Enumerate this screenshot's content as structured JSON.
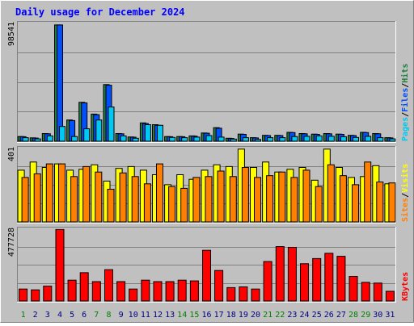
{
  "title": "Daily usage for December 2024",
  "colors": {
    "background": "#c0c0c0",
    "title": "#0000ff",
    "pages": "#00c8f0",
    "files": "#0050ff",
    "hits": "#208040",
    "sites": "#ff8000",
    "visits": "#ffff00",
    "kbytes": "#ff0000",
    "weekday_label": "#000080",
    "weekend_label": "#008000"
  },
  "chart_data": [
    {
      "type": "bar",
      "title": "Daily usage for December 2024",
      "panel": "hits-files-pages",
      "ymax_label": "98541",
      "ylim": [
        0,
        98541
      ],
      "legend": [
        {
          "text": "Pages",
          "color": "#00c8f0"
        },
        {
          "text": "Files",
          "color": "#0050ff"
        },
        {
          "text": "Hits",
          "color": "#208040"
        }
      ],
      "categories": [
        "1",
        "2",
        "3",
        "4",
        "5",
        "6",
        "7",
        "8",
        "9",
        "10",
        "11",
        "12",
        "13",
        "14",
        "15",
        "16",
        "17",
        "18",
        "19",
        "20",
        "21",
        "22",
        "23",
        "24",
        "25",
        "26",
        "27",
        "28",
        "29",
        "30",
        "31"
      ],
      "series": [
        {
          "name": "Hits",
          "values": [
            4000,
            2900,
            6500,
            98541,
            18000,
            33000,
            23000,
            48000,
            6500,
            3600,
            15500,
            14000,
            4000,
            4000,
            4500,
            7000,
            11500,
            2500,
            6000,
            3000,
            5000,
            5000,
            7500,
            6500,
            6000,
            6500,
            6000,
            5000,
            7500,
            6500,
            3000
          ]
        },
        {
          "name": "Files",
          "values": [
            3800,
            2700,
            6300,
            98541,
            17500,
            32500,
            22500,
            47500,
            6300,
            3400,
            15000,
            13500,
            3800,
            3800,
            4300,
            6800,
            11000,
            2300,
            5800,
            2800,
            4800,
            4800,
            7300,
            6300,
            5800,
            6300,
            5800,
            4800,
            7300,
            6300,
            2800
          ]
        },
        {
          "name": "Pages",
          "values": [
            3000,
            2000,
            4500,
            12500,
            4000,
            10500,
            18000,
            29000,
            4500,
            2500,
            14000,
            13500,
            3200,
            3000,
            3500,
            4800,
            3500,
            1800,
            3000,
            1500,
            3000,
            3000,
            4000,
            4200,
            4500,
            4200,
            3800,
            3200,
            4200,
            3000,
            2000
          ]
        }
      ]
    },
    {
      "type": "bar",
      "panel": "visits-sites",
      "ymax_label": "401",
      "ylim": [
        0,
        401
      ],
      "legend": [
        {
          "text": "Sites",
          "color": "#ff8000"
        },
        {
          "text": "Visits",
          "color": "#ffff00"
        }
      ],
      "categories": [
        "1",
        "2",
        "3",
        "4",
        "5",
        "6",
        "7",
        "8",
        "9",
        "10",
        "11",
        "12",
        "13",
        "14",
        "15",
        "16",
        "17",
        "18",
        "19",
        "20",
        "21",
        "22",
        "23",
        "24",
        "25",
        "26",
        "27",
        "28",
        "29",
        "30",
        "31"
      ],
      "series": [
        {
          "name": "Visits",
          "values": [
            285,
            330,
            300,
            320,
            285,
            290,
            315,
            225,
            295,
            305,
            285,
            260,
            205,
            260,
            235,
            285,
            315,
            305,
            401,
            300,
            330,
            275,
            290,
            300,
            230,
            401,
            300,
            245,
            250,
            310,
            210
          ]
        },
        {
          "name": "Sites",
          "values": [
            245,
            265,
            320,
            320,
            250,
            305,
            275,
            180,
            270,
            250,
            210,
            320,
            195,
            185,
            245,
            250,
            280,
            250,
            300,
            245,
            255,
            275,
            245,
            285,
            195,
            315,
            255,
            205,
            330,
            220,
            215
          ]
        }
      ]
    },
    {
      "type": "bar",
      "panel": "kbytes",
      "ymax_label": "477728",
      "ylim": [
        0,
        477728
      ],
      "legend": [
        {
          "text": "KBytes",
          "color": "#ff0000"
        }
      ],
      "categories": [
        "1",
        "2",
        "3",
        "4",
        "5",
        "6",
        "7",
        "8",
        "9",
        "10",
        "11",
        "12",
        "13",
        "14",
        "15",
        "16",
        "17",
        "18",
        "19",
        "20",
        "21",
        "22",
        "23",
        "24",
        "25",
        "26",
        "27",
        "28",
        "29",
        "30",
        "31"
      ],
      "series": [
        {
          "name": "KBytes",
          "values": [
            80000,
            75000,
            100000,
            480000,
            140000,
            190000,
            130000,
            210000,
            130000,
            80000,
            140000,
            130000,
            130000,
            140000,
            135000,
            340000,
            205000,
            90000,
            95000,
            80000,
            265000,
            365000,
            360000,
            250000,
            285000,
            320000,
            300000,
            165000,
            125000,
            120000,
            65000
          ]
        }
      ]
    }
  ],
  "day_labels": [
    {
      "text": "1",
      "weekend": true
    },
    {
      "text": "2",
      "weekend": false
    },
    {
      "text": "3",
      "weekend": false
    },
    {
      "text": "4",
      "weekend": false
    },
    {
      "text": "5",
      "weekend": false
    },
    {
      "text": "6",
      "weekend": false
    },
    {
      "text": "7",
      "weekend": true
    },
    {
      "text": "8",
      "weekend": true
    },
    {
      "text": "9",
      "weekend": false
    },
    {
      "text": "10",
      "weekend": false
    },
    {
      "text": "11",
      "weekend": false
    },
    {
      "text": "12",
      "weekend": false
    },
    {
      "text": "13",
      "weekend": false
    },
    {
      "text": "14",
      "weekend": true
    },
    {
      "text": "15",
      "weekend": true
    },
    {
      "text": "16",
      "weekend": false
    },
    {
      "text": "17",
      "weekend": false
    },
    {
      "text": "18",
      "weekend": false
    },
    {
      "text": "19",
      "weekend": false
    },
    {
      "text": "20",
      "weekend": false
    },
    {
      "text": "21",
      "weekend": true
    },
    {
      "text": "22",
      "weekend": true
    },
    {
      "text": "23",
      "weekend": false
    },
    {
      "text": "24",
      "weekend": false
    },
    {
      "text": "25",
      "weekend": false
    },
    {
      "text": "26",
      "weekend": false
    },
    {
      "text": "27",
      "weekend": false
    },
    {
      "text": "28",
      "weekend": true
    },
    {
      "text": "29",
      "weekend": true
    },
    {
      "text": "30",
      "weekend": false
    },
    {
      "text": "31",
      "weekend": false
    }
  ]
}
